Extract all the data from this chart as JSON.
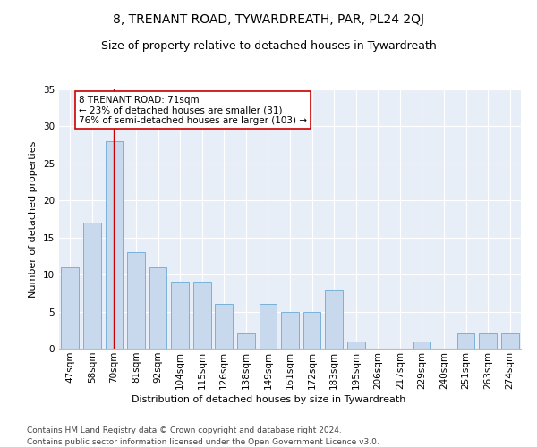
{
  "title": "8, TRENANT ROAD, TYWARDREATH, PAR, PL24 2QJ",
  "subtitle": "Size of property relative to detached houses in Tywardreath",
  "xlabel": "Distribution of detached houses by size in Tywardreath",
  "ylabel": "Number of detached properties",
  "categories": [
    "47sqm",
    "58sqm",
    "70sqm",
    "81sqm",
    "92sqm",
    "104sqm",
    "115sqm",
    "126sqm",
    "138sqm",
    "149sqm",
    "161sqm",
    "172sqm",
    "183sqm",
    "195sqm",
    "206sqm",
    "217sqm",
    "229sqm",
    "240sqm",
    "251sqm",
    "263sqm",
    "274sqm"
  ],
  "values": [
    11,
    17,
    28,
    13,
    11,
    9,
    9,
    6,
    2,
    6,
    5,
    5,
    8,
    1,
    0,
    0,
    1,
    0,
    2,
    2,
    2
  ],
  "bar_color": "#c8d9ed",
  "bar_edge_color": "#6aaad4",
  "highlight_bar_index": 2,
  "highlight_line_color": "#cc0000",
  "annotation_text": "8 TRENANT ROAD: 71sqm\n← 23% of detached houses are smaller (31)\n76% of semi-detached houses are larger (103) →",
  "annotation_box_color": "#ffffff",
  "annotation_box_edge_color": "#cc0000",
  "ylim": [
    0,
    35
  ],
  "yticks": [
    0,
    5,
    10,
    15,
    20,
    25,
    30,
    35
  ],
  "plot_bg_color": "#e8eef7",
  "footer1": "Contains HM Land Registry data © Crown copyright and database right 2024.",
  "footer2": "Contains public sector information licensed under the Open Government Licence v3.0.",
  "title_fontsize": 10,
  "subtitle_fontsize": 9,
  "axis_label_fontsize": 8,
  "tick_fontsize": 7.5,
  "annotation_fontsize": 7.5,
  "footer_fontsize": 6.5
}
